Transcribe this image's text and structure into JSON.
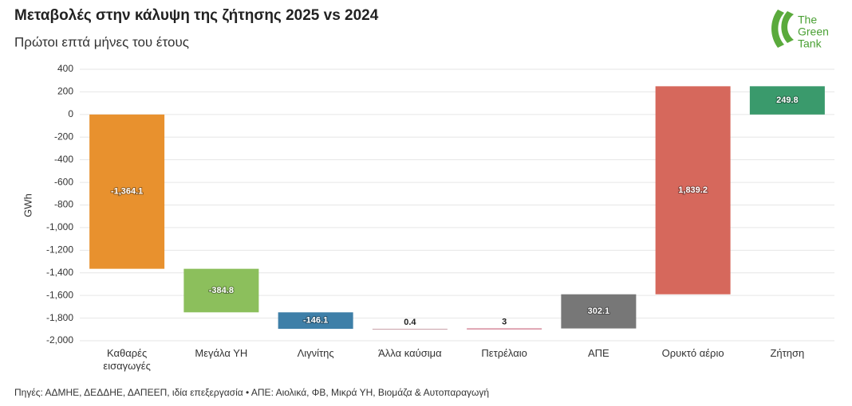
{
  "chart_data": {
    "type": "waterfall",
    "title": "Μεταβολές στην κάλυψη της ζήτησης 2025 vs 2024",
    "subtitle": "Πρώτοι επτά μήνες του έτους",
    "y_label": "GWh",
    "source": "Πηγές: ΑΔΜΗΕ, ΔΕΔΔΗΕ, ΔΑΠΕΕΠ, ιδία επεξεργασία • ΑΠΕ: Αιολικά, ΦΒ, Μικρά ΥΗ, Βιομάζα & Αυτοπαραγωγή",
    "logo": [
      "The",
      "Green",
      "Tank"
    ],
    "categories": [
      "Καθαρές εισαγωγές",
      "Μεγάλα ΥΗ",
      "Λιγνίτης",
      "Άλλα καύσιμα",
      "Πετρέλαιο",
      "ΑΠΕ",
      "Ορυκτό αέριο",
      "Ζήτηση"
    ],
    "values": [
      -1364.1,
      -384.8,
      -146.1,
      0.4,
      3,
      302.1,
      1839.2,
      249.8
    ],
    "value_labels": [
      "-1,364.1",
      "-384.8",
      "-146.1",
      "0.4",
      "3",
      "302.1",
      "1,839.2",
      "249.8"
    ],
    "colors": [
      "#e8912e",
      "#8cbf5c",
      "#3e7fa8",
      "#c9a0a8",
      "#c0506a",
      "#777777",
      "#d6685c",
      "#3a9a6c"
    ],
    "last_is_total": true,
    "ylim": [
      -2000,
      400
    ],
    "yticks": [
      400,
      200,
      0,
      -200,
      -400,
      -600,
      -800,
      {
        "value": -1000,
        "label": "-1,000"
      },
      {
        "value": -1200,
        "label": "-1,200"
      },
      {
        "value": -1400,
        "label": "-1,400"
      },
      {
        "value": -1600,
        "label": "-1,600"
      },
      {
        "value": -1800,
        "label": "-1,800"
      },
      {
        "value": -2000,
        "label": "-2,000"
      }
    ],
    "grid": true
  }
}
